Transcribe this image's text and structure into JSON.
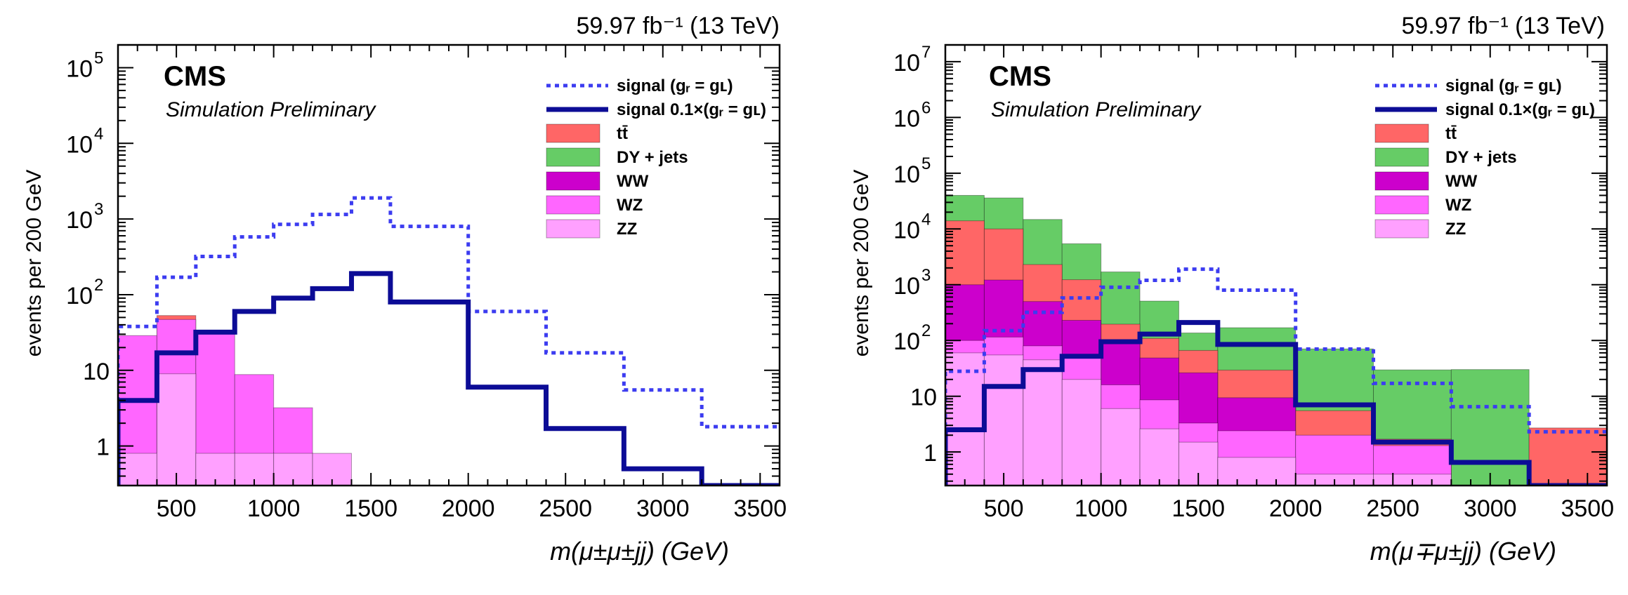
{
  "colors": {
    "signal_dotted": "#3c3cf0",
    "signal_solid": "#0c0c96",
    "ttbar": "#ff6666",
    "dy": "#66cc66",
    "ww": "#cc00cc",
    "wz": "#ff66ff",
    "zz": "#ffa0ff"
  },
  "chart_data": [
    {
      "type": "histogram",
      "lumi_label": "59.97 fb⁻¹ (13 TeV)",
      "cms_label": "CMS",
      "sub_label": "Simulation Preliminary",
      "ylabel": "events per 200 GeV",
      "xlabel": "m(μ±μ±jj) (GeV)",
      "xlim": [
        200,
        3600
      ],
      "ylim": [
        0.3,
        200000
      ],
      "yscale": "log",
      "ymax_decade": 5,
      "x_ticks": [
        500,
        1000,
        1500,
        2000,
        2500,
        3000,
        3500
      ],
      "y_ticks": [
        {
          "value": 1,
          "label": "1",
          "exp": ""
        },
        {
          "value": 10,
          "label": "10",
          "exp": ""
        },
        {
          "value": 100,
          "label": "10",
          "exp": "2"
        },
        {
          "value": 1000,
          "label": "10",
          "exp": "3"
        },
        {
          "value": 10000,
          "label": "10",
          "exp": "4"
        },
        {
          "value": 100000,
          "label": "10",
          "exp": "5"
        }
      ],
      "legend": [
        {
          "key": "signal_dotted",
          "text": "signal (gᵣ = gʟ)"
        },
        {
          "key": "signal_solid",
          "text": "signal  0.1×(gᵣ = gʟ)"
        },
        {
          "key": "ttbar",
          "text": "tt̄"
        },
        {
          "key": "dy",
          "text": "DY + jets"
        },
        {
          "key": "ww",
          "text": "WW"
        },
        {
          "key": "wz",
          "text": "WZ"
        },
        {
          "key": "zz",
          "text": "ZZ"
        }
      ],
      "bin_edges": [
        200,
        400,
        600,
        800,
        1000,
        1200,
        1400,
        1600,
        2000,
        2400,
        2800,
        3200,
        3600
      ],
      "stack": [
        {
          "key": "zz",
          "values": [
            0.8,
            9,
            0.8,
            0.8,
            0.8,
            0.8,
            0,
            0,
            0,
            0,
            0,
            0
          ]
        },
        {
          "key": "wz",
          "values": [
            28,
            38,
            30,
            8,
            2.4,
            0,
            0,
            0,
            0,
            0,
            0,
            0
          ]
        },
        {
          "key": "ttbar",
          "values": [
            0,
            6,
            0,
            0,
            0,
            0,
            0,
            0,
            0,
            0,
            0,
            0
          ]
        }
      ],
      "signal_dotted": [
        38,
        170,
        320,
        580,
        850,
        1150,
        1900,
        800,
        60,
        17,
        5.5,
        1.8
      ],
      "signal_solid": [
        4,
        17,
        32,
        60,
        90,
        120,
        190,
        80,
        6,
        1.7,
        0.5,
        0.3
      ]
    },
    {
      "type": "histogram",
      "lumi_label": "59.97 fb⁻¹ (13 TeV)",
      "cms_label": "CMS",
      "sub_label": "Simulation Preliminary",
      "ylabel": "events per 200 GeV",
      "xlabel": "m(μ∓μ±jj) (GeV)",
      "xlim": [
        200,
        3600
      ],
      "ylim": [
        0.25,
        20000000
      ],
      "yscale": "log",
      "ymax_decade": 7,
      "x_ticks": [
        500,
        1000,
        1500,
        2000,
        2500,
        3000,
        3500
      ],
      "y_ticks": [
        {
          "value": 1,
          "label": "1",
          "exp": ""
        },
        {
          "value": 10,
          "label": "10",
          "exp": ""
        },
        {
          "value": 100,
          "label": "10",
          "exp": "2"
        },
        {
          "value": 1000,
          "label": "10",
          "exp": "3"
        },
        {
          "value": 10000,
          "label": "10",
          "exp": "4"
        },
        {
          "value": 100000,
          "label": "10",
          "exp": "5"
        },
        {
          "value": 1000000,
          "label": "10",
          "exp": "6"
        },
        {
          "value": 10000000,
          "label": "10",
          "exp": "7"
        }
      ],
      "legend": [
        {
          "key": "signal_dotted",
          "text": "signal (gᵣ = gʟ)"
        },
        {
          "key": "signal_solid",
          "text": "signal  0.1×(gᵣ = gʟ)"
        },
        {
          "key": "ttbar",
          "text": "tt̄"
        },
        {
          "key": "dy",
          "text": "DY + jets"
        },
        {
          "key": "ww",
          "text": "WW"
        },
        {
          "key": "wz",
          "text": "WZ"
        },
        {
          "key": "zz",
          "text": "ZZ"
        }
      ],
      "bin_edges": [
        200,
        400,
        600,
        800,
        1000,
        1200,
        1400,
        1600,
        2000,
        2400,
        2800,
        3200,
        3600
      ],
      "stack": [
        {
          "key": "zz",
          "values": [
            60,
            55,
            45,
            20,
            6,
            2.6,
            1.5,
            0.8,
            0.4,
            0.4,
            0,
            0
          ]
        },
        {
          "key": "wz",
          "values": [
            40,
            60,
            35,
            30,
            10,
            6,
            1.8,
            1.6,
            1.6,
            0.9,
            0,
            0
          ]
        },
        {
          "key": "ww",
          "values": [
            900,
            1100,
            420,
            180,
            80,
            40,
            23,
            7,
            0,
            0,
            0,
            0
          ]
        },
        {
          "key": "ttbar",
          "values": [
            13000,
            8800,
            1800,
            1000,
            100,
            60,
            40,
            20,
            3.5,
            0.4,
            0.1,
            2.7
          ]
        },
        {
          "key": "dy",
          "values": [
            26000,
            26000,
            12500,
            4200,
            1500,
            400,
            70,
            140,
            65,
            28,
            30,
            0
          ]
        }
      ],
      "signal_dotted": [
        28,
        150,
        320,
        580,
        900,
        1200,
        1900,
        800,
        70,
        17,
        6.5,
        2.3
      ],
      "signal_solid": [
        2.5,
        15,
        30,
        52,
        95,
        130,
        210,
        85,
        7,
        1.5,
        0.65,
        0.25
      ]
    }
  ]
}
